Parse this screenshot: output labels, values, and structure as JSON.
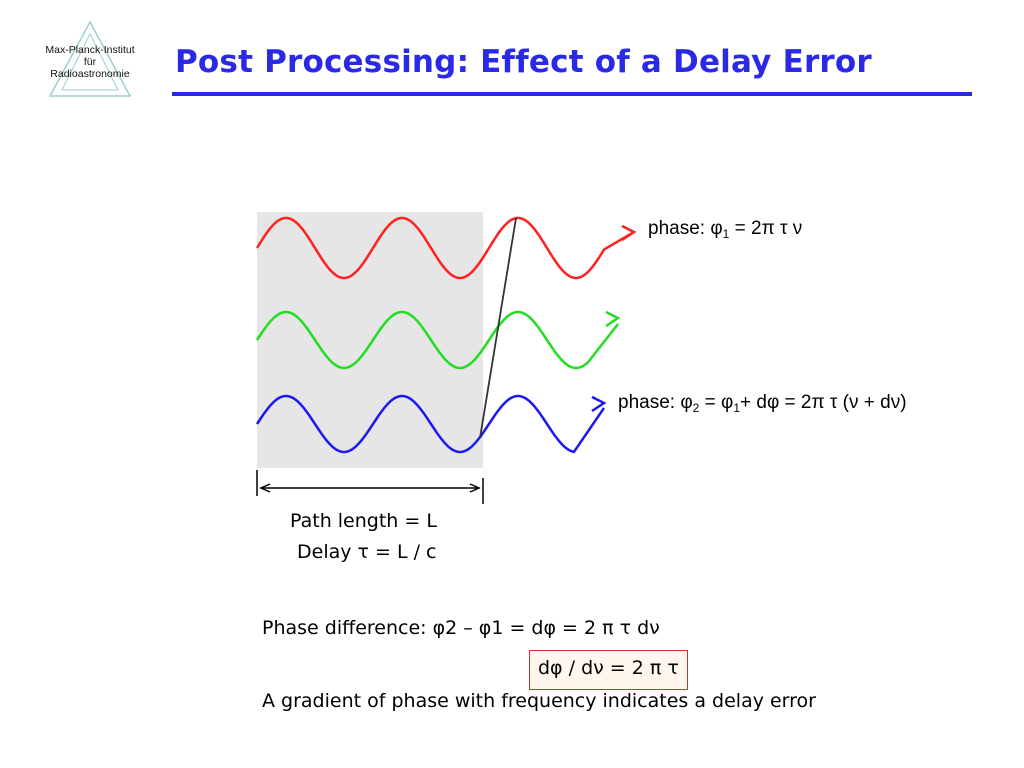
{
  "logo": {
    "line1": "Max-Planck-Institut",
    "line2": "für",
    "line3": "Radioastronomie"
  },
  "slide": {
    "title": "Post Processing: Effect of a Delay Error"
  },
  "diagram": {
    "phase1": {
      "prefix": "phase:  φ",
      "sub": "1",
      "rest": " = 2π τ ν"
    },
    "phase2": {
      "prefix": "phase:  φ",
      "sub1": "2",
      "mid": " = φ",
      "sub2": "1",
      "rest": "+ dφ = 2π τ (ν + dν)"
    },
    "path_length": "Path length = L",
    "delay": "Delay τ = L / c",
    "colors": {
      "red_wave": "#ff2020",
      "green_wave": "#22dd22",
      "blue_wave": "#1a1aee",
      "shaded_region": "#e6e6e6"
    }
  },
  "notes": {
    "phase_difference": "Phase difference: φ2 – φ1 = dφ = 2 π τ dν",
    "gradient_formula": "dφ / dν = 2 π τ",
    "conclusion": "A gradient of phase with frequency indicates a delay error"
  }
}
